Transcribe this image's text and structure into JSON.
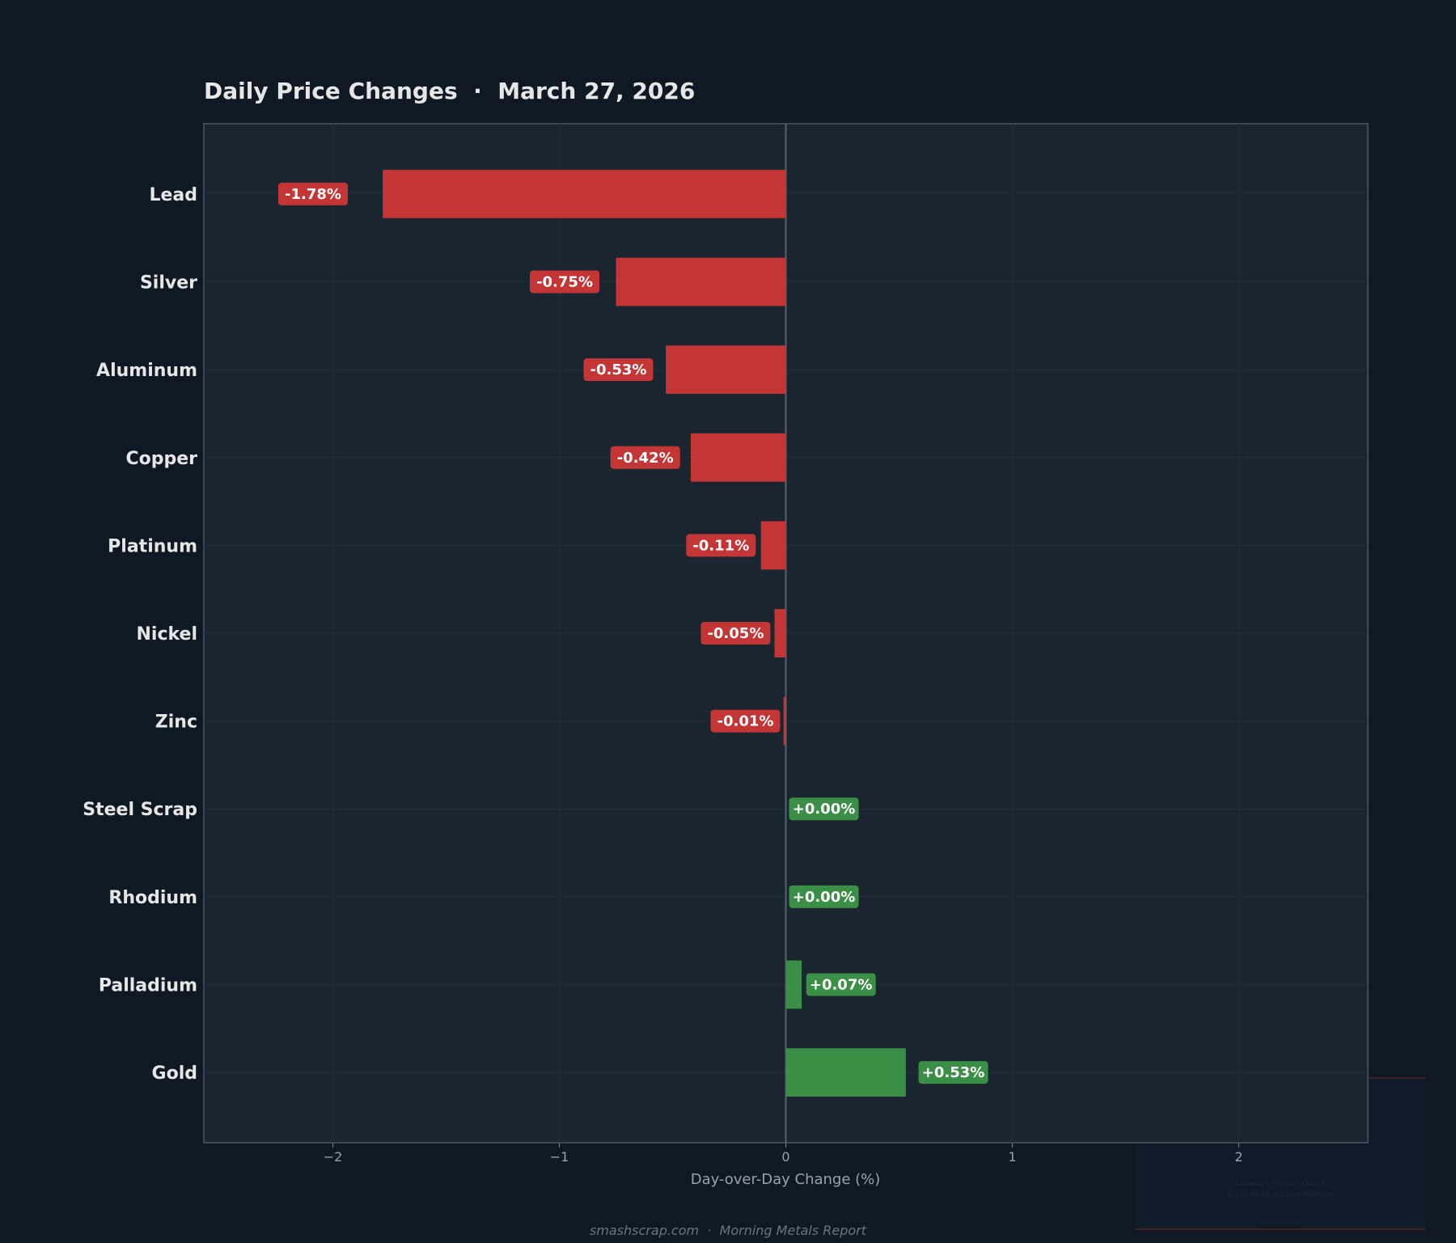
{
  "chart_data": {
    "type": "bar",
    "orientation": "horizontal",
    "title": "Daily Price Changes  ·  March 27, 2026",
    "xlabel": "Day-over-Day Change (%)",
    "ylabel": "",
    "categories": [
      "Lead",
      "Silver",
      "Aluminum",
      "Copper",
      "Platinum",
      "Nickel",
      "Zinc",
      "Steel Scrap",
      "Rhodium",
      "Palladium",
      "Gold"
    ],
    "values": [
      -1.78,
      -0.75,
      -0.53,
      -0.42,
      -0.11,
      -0.05,
      -0.01,
      0.0,
      0.0,
      0.07,
      0.53
    ],
    "data_labels": [
      "-1.78%",
      "-0.75%",
      "-0.53%",
      "-0.42%",
      "-0.11%",
      "-0.05%",
      "-0.01%",
      "+0.00%",
      "+0.00%",
      "+0.07%",
      "+0.53%"
    ],
    "xlim": [
      -2.57,
      2.57
    ],
    "xticks": [
      -2,
      -1,
      0,
      1,
      2
    ],
    "xtick_labels": [
      "−2",
      "−1",
      "0",
      "1",
      "2"
    ],
    "grid": true,
    "colors": {
      "negative": "#c43535",
      "positive": "#3b8e45",
      "background": "#0f1923",
      "plot_background": "#1b2530"
    }
  },
  "footer": "smashscrap.com  ·  Morning Metals Report",
  "watermark": {
    "lines": [
      "Canada's Premier Online",
      "Scrap Metal Auction Platform"
    ],
    "site": "smashscrap.com"
  }
}
